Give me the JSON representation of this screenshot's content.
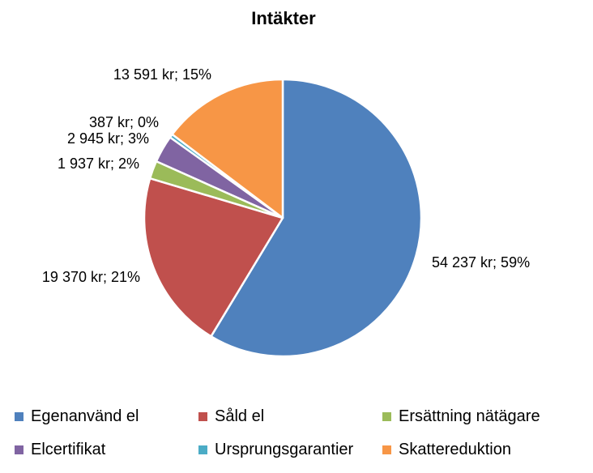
{
  "chart_data": {
    "type": "pie",
    "title": "Intäkter",
    "start_angle_deg": 0,
    "direction": "clockwise",
    "legend_position": "bottom",
    "slices": [
      {
        "name": "Egenanvänd el",
        "value": 54237,
        "label": "54 237 kr; 59%",
        "color": "#4F81BD"
      },
      {
        "name": "Såld el",
        "value": 19370,
        "label": "19 370 kr; 21%",
        "color": "#C0504D"
      },
      {
        "name": "Ersättning nätägare",
        "value": 1937,
        "label": "1 937 kr; 2%",
        "color": "#9BBB59"
      },
      {
        "name": "Elcertifikat",
        "value": 2945,
        "label": "2 945 kr; 3%",
        "color": "#8064A2"
      },
      {
        "name": "Ursprungsgarantier",
        "value": 387,
        "label": "387 kr; 0%",
        "color": "#4BACC6"
      },
      {
        "name": "Skattereduktion",
        "value": 13591,
        "label": "13 591 kr; 15%",
        "color": "#F79646"
      }
    ]
  }
}
